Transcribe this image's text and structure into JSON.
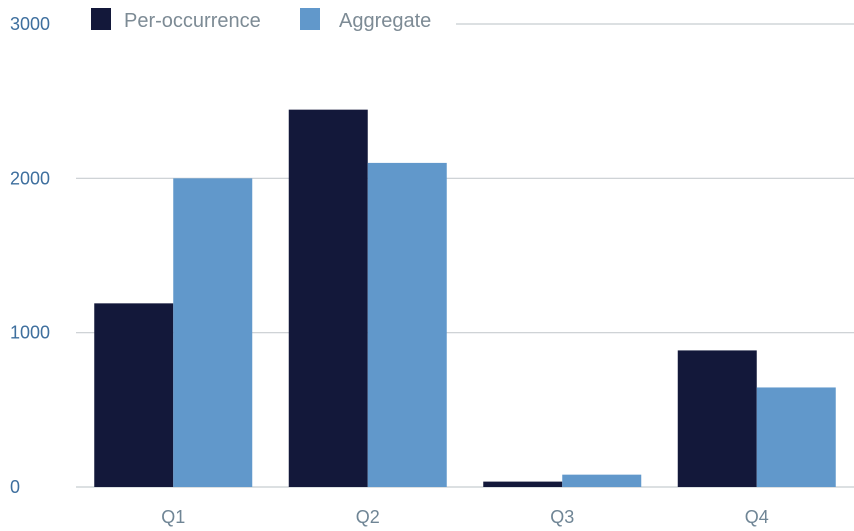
{
  "chart_data": {
    "type": "bar",
    "categories": [
      "Q1",
      "Q2",
      "Q3",
      "Q4"
    ],
    "series": [
      {
        "name": "Per-occurrence",
        "color": "#13183a",
        "values": [
          1190,
          2445,
          35,
          885
        ]
      },
      {
        "name": "Aggregate",
        "color": "#6198cb",
        "values": [
          2000,
          2100,
          80,
          645
        ]
      }
    ],
    "ylim": [
      0,
      3000
    ],
    "yticks": [
      0,
      1000,
      2000,
      3000
    ],
    "ytick_labels": [
      "0",
      "1000",
      "2000",
      "3000"
    ],
    "grid": true,
    "legend_position": "top-left",
    "title": "",
    "xlabel": "",
    "ylabel": ""
  }
}
